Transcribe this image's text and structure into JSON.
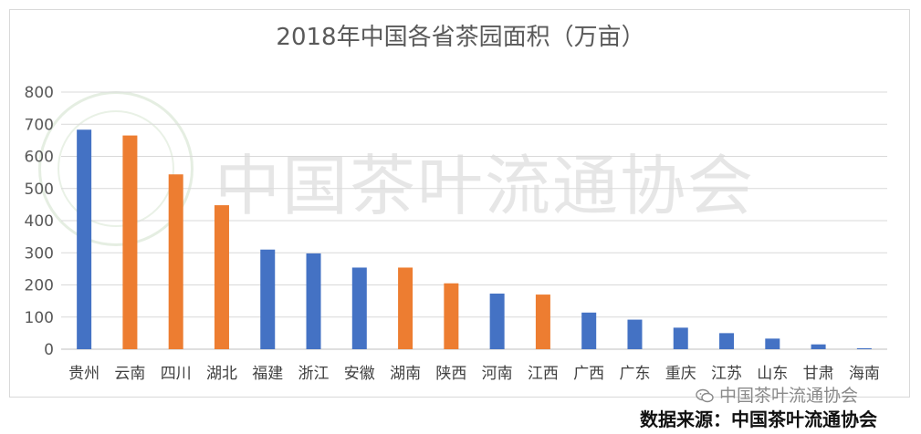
{
  "chart_data": {
    "type": "bar",
    "title": "2018年中国各省茶园面积（万亩）",
    "xlabel": "",
    "ylabel": "",
    "ylim": [
      0,
      800
    ],
    "yticks": [
      0,
      100,
      200,
      300,
      400,
      500,
      600,
      700,
      800
    ],
    "grid": true,
    "legend": "none",
    "categories": [
      "贵州",
      "云南",
      "四川",
      "湖北",
      "福建",
      "浙江",
      "安徽",
      "湖南",
      "陕西",
      "河南",
      "江西",
      "广西",
      "广东",
      "重庆",
      "江苏",
      "山东",
      "甘肃",
      "海南"
    ],
    "values": [
      683,
      665,
      544,
      448,
      310,
      298,
      254,
      254,
      205,
      173,
      170,
      114,
      92,
      67,
      50,
      33,
      15,
      3
    ],
    "bar_colors": [
      "#4472C4",
      "#ED7D31",
      "#ED7D31",
      "#ED7D31",
      "#4472C4",
      "#4472C4",
      "#4472C4",
      "#ED7D31",
      "#ED7D31",
      "#4472C4",
      "#ED7D31",
      "#4472C4",
      "#4472C4",
      "#4472C4",
      "#4472C4",
      "#4472C4",
      "#4472C4",
      "#4472C4"
    ]
  },
  "colors": {
    "blue": "#4472C4",
    "orange": "#ED7D31",
    "grid": "#d9d9d9",
    "axis_text": "#595959"
  },
  "watermark": {
    "text": "中国茶叶流通协会"
  },
  "footer": {
    "wechat_label": "中国茶叶流通协会",
    "wechat_icon": "wechat-icon",
    "source": "数据来源：中国茶叶流通协会"
  }
}
